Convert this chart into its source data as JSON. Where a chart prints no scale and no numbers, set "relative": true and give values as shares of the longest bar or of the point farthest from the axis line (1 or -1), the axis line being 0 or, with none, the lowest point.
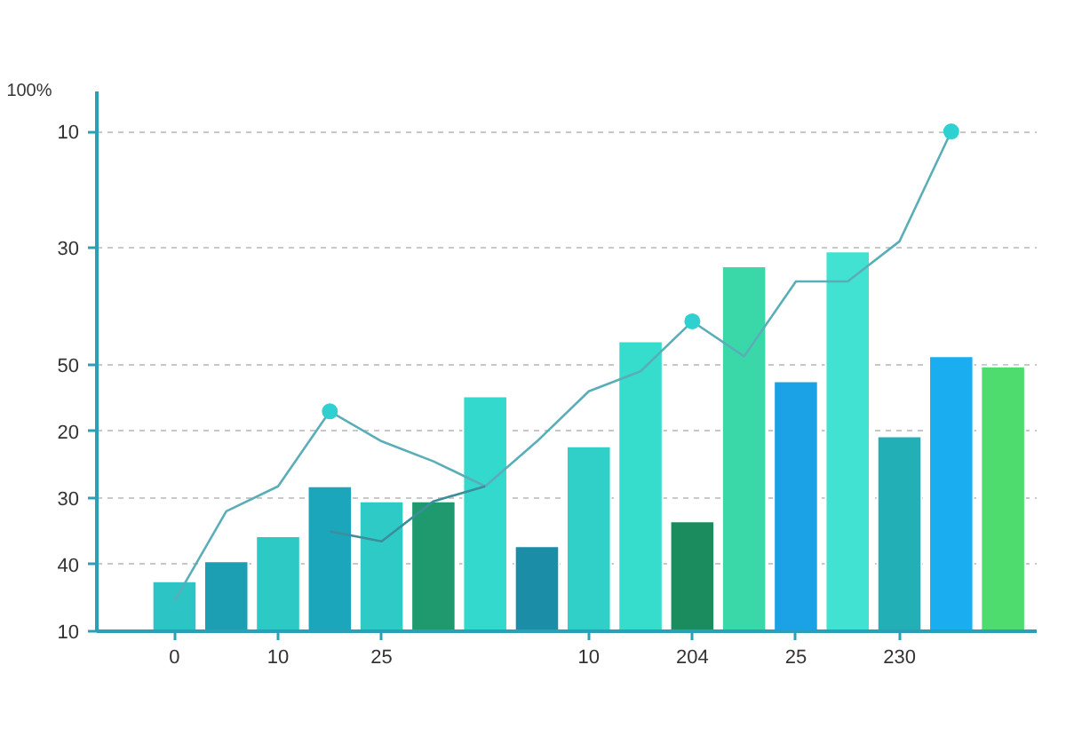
{
  "chart_data": {
    "type": "bar",
    "ylabel": "100%",
    "relative": true,
    "categories": [
      "0",
      null,
      "10",
      null,
      "25",
      null,
      null,
      null,
      "10",
      null,
      "204",
      null,
      "25",
      null,
      "230",
      null,
      null
    ],
    "y_categories": [
      "10",
      null,
      null,
      null,
      null,
      null,
      null,
      "30",
      null,
      null,
      null,
      null,
      null,
      null,
      "50",
      null,
      null,
      null,
      "20",
      null,
      null,
      null,
      "30",
      null,
      null,
      null,
      "40",
      null,
      null,
      null,
      "10"
    ],
    "grid": "y",
    "series": [
      {
        "colors": [
          "#2cc4c4",
          "#1d9fb3",
          "#2dc9c4",
          "#1ca6bc",
          "#2ecac6",
          "#1f9a6e",
          "#33d9cd",
          "#1c8da6",
          "#30cfc8",
          "#36dccc",
          "#1b8c5e",
          "#3ad8a8",
          "#1ba1e6",
          "#42e2d2",
          "#22afb6",
          "#1aaef0",
          "#4fdc6e"
        ],
        "values": [
          0.1,
          0.14,
          0.19,
          0.29,
          0.26,
          0.26,
          0.47,
          0.17,
          0.37,
          0.58,
          0.22,
          0.73,
          0.5,
          0.76,
          0.39,
          0.55,
          0.53
        ]
      },
      {
        "type": "line",
        "color": "#5aaeb8",
        "values": [
          0.06,
          0.24,
          0.29,
          0.44,
          0.38,
          0.34,
          0.29,
          0.38,
          0.48,
          0.52,
          0.62,
          0.55,
          0.7,
          0.7,
          0.78,
          1,
          null
        ]
      },
      {
        "type": "line",
        "color": "#3d8e9c",
        "values": [
          null,
          null,
          null,
          0.2,
          0.18,
          0.26,
          0.29,
          null,
          null,
          null,
          null,
          null,
          null,
          null,
          null,
          null,
          null
        ]
      },
      {
        "type": "scatter",
        "color": "#2fd0d0",
        "marker": "circle",
        "values": [
          null,
          null,
          null,
          0.44,
          null,
          null,
          null,
          null,
          null,
          null,
          0.62,
          null,
          null,
          null,
          null,
          1,
          null
        ]
      }
    ]
  }
}
